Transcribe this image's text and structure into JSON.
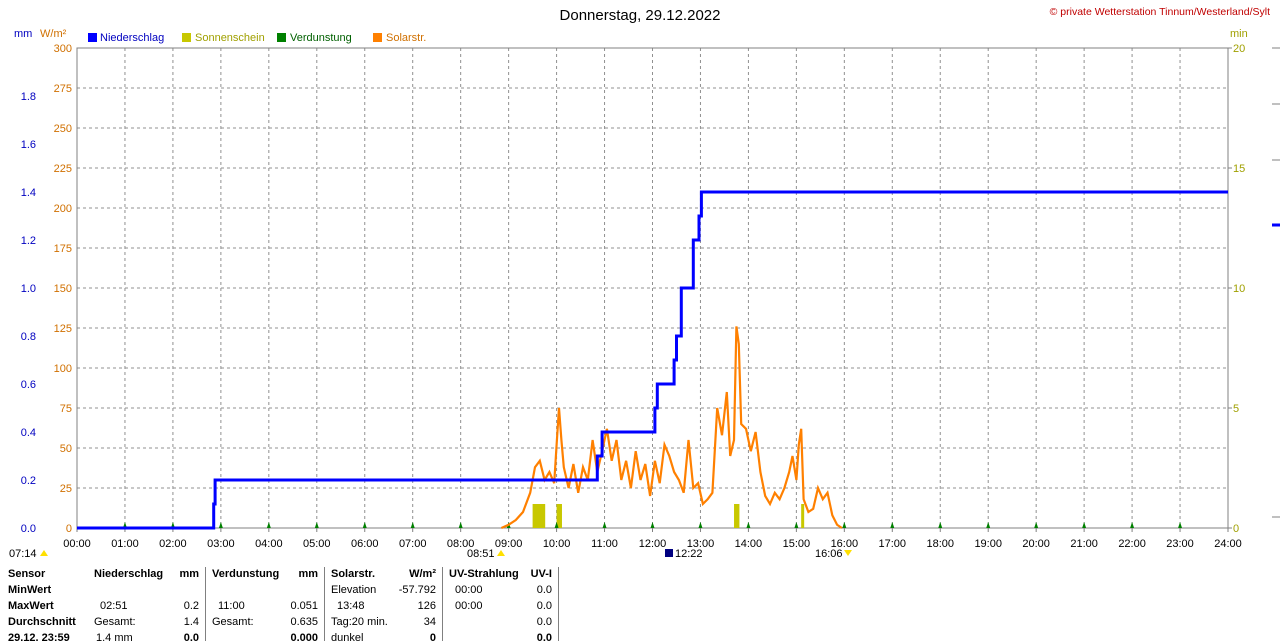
{
  "header": {
    "title": "Donnerstag, 29.12.2022",
    "copyright": "© private Wetterstation Tinnum/Westerland/Sylt",
    "left_unit1": "mm",
    "left_unit2": "W/m²",
    "right_unit": "min"
  },
  "legend": [
    {
      "label": "Niederschlag",
      "color": "#0000ff"
    },
    {
      "label": "Sonnenschein",
      "color": "#c8c800"
    },
    {
      "label": "Verdunstung",
      "color": "#008000"
    },
    {
      "label": "Solarstr.",
      "color": "#ff8000"
    }
  ],
  "markers": {
    "sunrise_left": "07:14",
    "sunrise": "08:51",
    "noon": "12:22",
    "sunset": "16:06"
  },
  "chart_data": {
    "type": "line",
    "x_ticks": [
      "00:00",
      "01:00",
      "02:00",
      "03:00",
      "04:00",
      "05:00",
      "06:00",
      "07:00",
      "08:00",
      "09:00",
      "10:00",
      "11:00",
      "12:00",
      "13:00",
      "14:00",
      "15:00",
      "16:00",
      "17:00",
      "18:00",
      "19:00",
      "20:00",
      "21:00",
      "22:00",
      "23:00",
      "24:00"
    ],
    "y_left_mm_ticks": [
      "0.0",
      "0.2",
      "0.4",
      "0.6",
      "0.8",
      "1.0",
      "1.2",
      "1.4",
      "1.6",
      "1.8"
    ],
    "y_left_wm2_ticks": [
      "0",
      "25",
      "50",
      "75",
      "100",
      "125",
      "150",
      "175",
      "200",
      "225",
      "250",
      "275",
      "300"
    ],
    "y_right_min_ticks": [
      "0",
      "5",
      "10",
      "15",
      "20"
    ],
    "ylim_mm": [
      0,
      2.0
    ],
    "ylim_wm2": [
      0,
      300
    ],
    "ylim_min": [
      0,
      20
    ],
    "xlim_hours": [
      0,
      24
    ],
    "grid": true,
    "series": [
      {
        "name": "Niederschlag",
        "unit": "mm",
        "color": "#0000ff",
        "points": [
          [
            0,
            0
          ],
          [
            2.85,
            0
          ],
          [
            2.85,
            0.1
          ],
          [
            2.88,
            0.1
          ],
          [
            2.88,
            0.2
          ],
          [
            10.85,
            0.2
          ],
          [
            10.85,
            0.3
          ],
          [
            10.95,
            0.3
          ],
          [
            10.95,
            0.4
          ],
          [
            12.05,
            0.4
          ],
          [
            12.05,
            0.5
          ],
          [
            12.1,
            0.5
          ],
          [
            12.1,
            0.6
          ],
          [
            12.45,
            0.6
          ],
          [
            12.45,
            0.7
          ],
          [
            12.5,
            0.7
          ],
          [
            12.5,
            0.8
          ],
          [
            12.6,
            0.8
          ],
          [
            12.6,
            1.0
          ],
          [
            12.85,
            1.0
          ],
          [
            12.85,
            1.2
          ],
          [
            12.97,
            1.2
          ],
          [
            12.97,
            1.3
          ],
          [
            13.02,
            1.3
          ],
          [
            13.02,
            1.4
          ],
          [
            24,
            1.4
          ]
        ]
      },
      {
        "name": "Sonnenschein",
        "unit": "min",
        "color": "#c8c800",
        "bars": [
          [
            9.5,
            1
          ],
          [
            9.55,
            1
          ],
          [
            9.6,
            1
          ],
          [
            9.65,
            1
          ],
          [
            9.7,
            1
          ],
          [
            10.0,
            1
          ],
          [
            10.05,
            1
          ],
          [
            13.7,
            1
          ],
          [
            13.75,
            1
          ],
          [
            15.1,
            1
          ]
        ]
      },
      {
        "name": "Verdunstung",
        "unit": "mm",
        "color": "#008000",
        "markers": [
          1,
          2,
          3,
          4,
          5,
          6,
          7,
          8,
          9,
          10,
          11,
          12,
          13,
          14,
          15,
          16,
          17,
          18,
          19,
          20,
          21,
          22,
          23
        ]
      },
      {
        "name": "Solarstr.",
        "unit": "W/m²",
        "color": "#ff8000",
        "points": [
          [
            8.85,
            0
          ],
          [
            9.0,
            2
          ],
          [
            9.15,
            5
          ],
          [
            9.3,
            10
          ],
          [
            9.45,
            22
          ],
          [
            9.55,
            38
          ],
          [
            9.65,
            42
          ],
          [
            9.75,
            30
          ],
          [
            9.85,
            35
          ],
          [
            9.95,
            28
          ],
          [
            10.0,
            52
          ],
          [
            10.05,
            75
          ],
          [
            10.1,
            55
          ],
          [
            10.15,
            38
          ],
          [
            10.25,
            25
          ],
          [
            10.35,
            40
          ],
          [
            10.45,
            22
          ],
          [
            10.55,
            38
          ],
          [
            10.65,
            30
          ],
          [
            10.75,
            55
          ],
          [
            10.85,
            35
          ],
          [
            10.95,
            48
          ],
          [
            11.05,
            62
          ],
          [
            11.15,
            42
          ],
          [
            11.25,
            55
          ],
          [
            11.35,
            30
          ],
          [
            11.45,
            42
          ],
          [
            11.55,
            25
          ],
          [
            11.65,
            48
          ],
          [
            11.75,
            30
          ],
          [
            11.85,
            40
          ],
          [
            11.95,
            20
          ],
          [
            12.05,
            42
          ],
          [
            12.15,
            28
          ],
          [
            12.25,
            52
          ],
          [
            12.35,
            45
          ],
          [
            12.45,
            35
          ],
          [
            12.55,
            30
          ],
          [
            12.65,
            22
          ],
          [
            12.75,
            55
          ],
          [
            12.85,
            25
          ],
          [
            12.95,
            28
          ],
          [
            13.05,
            15
          ],
          [
            13.15,
            18
          ],
          [
            13.25,
            22
          ],
          [
            13.35,
            75
          ],
          [
            13.45,
            58
          ],
          [
            13.55,
            85
          ],
          [
            13.62,
            45
          ],
          [
            13.7,
            55
          ],
          [
            13.75,
            126
          ],
          [
            13.8,
            115
          ],
          [
            13.85,
            65
          ],
          [
            13.95,
            62
          ],
          [
            14.05,
            48
          ],
          [
            14.15,
            60
          ],
          [
            14.25,
            35
          ],
          [
            14.35,
            20
          ],
          [
            14.45,
            15
          ],
          [
            14.55,
            22
          ],
          [
            14.65,
            18
          ],
          [
            14.75,
            25
          ],
          [
            14.85,
            35
          ],
          [
            14.92,
            45
          ],
          [
            15.0,
            30
          ],
          [
            15.05,
            52
          ],
          [
            15.1,
            62
          ],
          [
            15.15,
            18
          ],
          [
            15.25,
            10
          ],
          [
            15.35,
            12
          ],
          [
            15.45,
            25
          ],
          [
            15.55,
            18
          ],
          [
            15.65,
            22
          ],
          [
            15.75,
            8
          ],
          [
            15.85,
            2
          ],
          [
            15.95,
            0
          ]
        ]
      }
    ]
  },
  "stats": {
    "sensor_label": "Sensor",
    "rows_label": [
      "MinWert",
      "MaxWert",
      "Durchschnitt",
      "29.12. 23:59"
    ],
    "niederschlag": {
      "header": "Niederschlag",
      "unit": "mm",
      "max_time": "02:51",
      "max_val": "0.2",
      "sum_label": "Gesamt:",
      "sum_val": "1.4",
      "last": "1.4 mm",
      "last_val": "0.0"
    },
    "verdunstung": {
      "header": "Verdunstung",
      "unit": "mm",
      "max_time": "11:00",
      "max_val": "0.051",
      "sum_label": "Gesamt:",
      "sum_val": "0.635",
      "last_val": "0.000"
    },
    "solar": {
      "header": "Solarstr.",
      "unit": "W/m²",
      "row1_label": "Elevation",
      "row1_val": "-57.792",
      "max_time": "13:48",
      "max_val": "126",
      "row3_label": "Tag:20 min.",
      "row3_val": "34",
      "row4_label": "dunkel",
      "row4_val": "0"
    },
    "uv": {
      "header": "UV-Strahlung",
      "unit": "UV-I",
      "min_time": "00:00",
      "min_val": "0.0",
      "max_time": "00:00",
      "max_val": "0.0",
      "avg_val": "0.0",
      "last_val": "0.0"
    }
  }
}
